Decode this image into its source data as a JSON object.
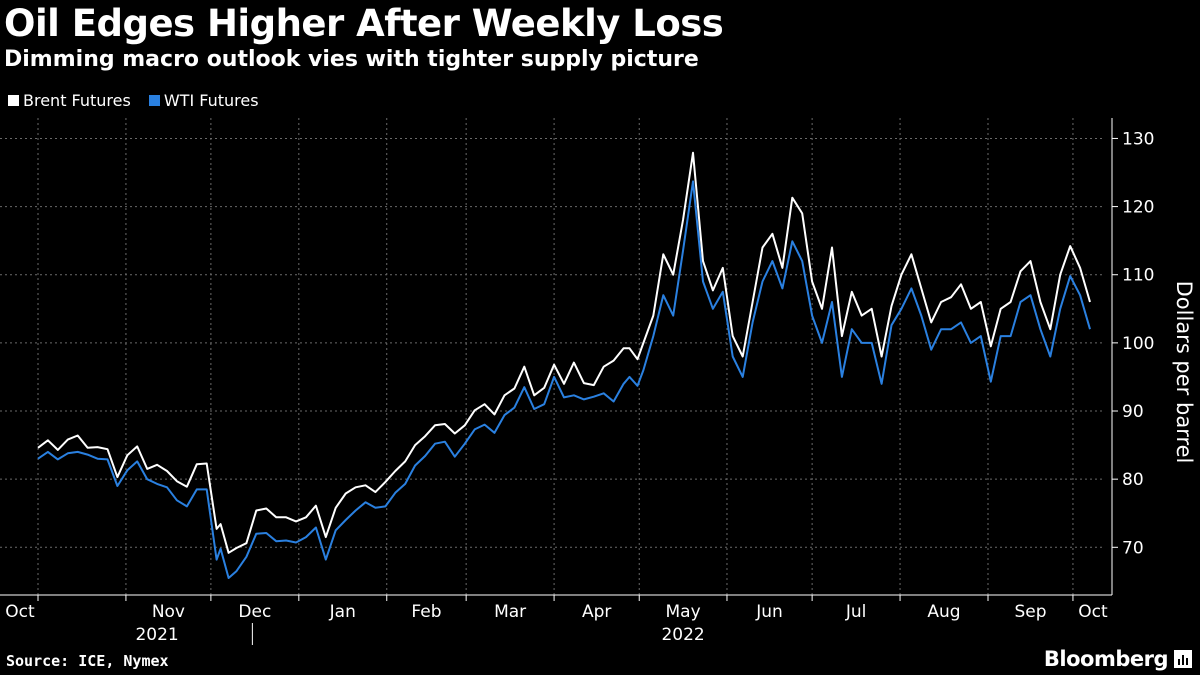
{
  "header": {
    "title": "Oil Edges Higher After Weekly Loss",
    "subtitle": "Dimming macro outlook vies with tighter supply picture"
  },
  "footer": {
    "source": "Source: ICE, Nymex",
    "brand": "Bloomberg"
  },
  "colors": {
    "background": "#000000",
    "brent": "#ffffff",
    "wti": "#2a80e0",
    "grid": "#6a6a6a"
  },
  "chart_data": {
    "type": "line",
    "title": "Oil Edges Higher After Weekly Loss",
    "subtitle": "Dimming macro outlook vies with tighter supply picture",
    "xlabel": "",
    "ylabel": "Dollars per barrel",
    "ylim": [
      63,
      133
    ],
    "yticks": [
      70,
      80,
      90,
      100,
      110,
      120,
      130
    ],
    "grid": true,
    "legend_position": "top-left",
    "x_unit": "weeks since 2021-10-01",
    "xlim": [
      0,
      53.1
    ],
    "month_ticks": [
      {
        "label": "Oct",
        "x": 0
      },
      {
        "label": "Nov",
        "x": 4.43
      },
      {
        "label": "Dec",
        "x": 8.71
      },
      {
        "label": "Jan",
        "x": 13.14
      },
      {
        "label": "Feb",
        "x": 17.57
      },
      {
        "label": "Mar",
        "x": 21.57
      },
      {
        "label": "Apr",
        "x": 26.0
      },
      {
        "label": "May",
        "x": 30.29
      },
      {
        "label": "Jun",
        "x": 34.71
      },
      {
        "label": "Jul",
        "x": 39.0
      },
      {
        "label": "Aug",
        "x": 43.43
      },
      {
        "label": "Sep",
        "x": 47.86
      },
      {
        "label": "Oct",
        "x": 52.14
      }
    ],
    "years": [
      {
        "label": "2021",
        "x": 6.0
      },
      {
        "label": "2022",
        "x": 32.5
      }
    ],
    "year_divider_x": 10.8,
    "series": [
      {
        "name": "Brent Futures",
        "color": "#ffffff",
        "points": [
          [
            0,
            84.6
          ],
          [
            0.5,
            85.7
          ],
          [
            1,
            84.3
          ],
          [
            1.5,
            85.8
          ],
          [
            2,
            86.4
          ],
          [
            2.5,
            84.6
          ],
          [
            3,
            84.7
          ],
          [
            3.5,
            84.4
          ],
          [
            4,
            80.3
          ],
          [
            4.5,
            83.5
          ],
          [
            5,
            84.8
          ],
          [
            5.5,
            81.5
          ],
          [
            6,
            82.1
          ],
          [
            6.5,
            81.2
          ],
          [
            7,
            79.7
          ],
          [
            7.5,
            78.9
          ],
          [
            8,
            82.2
          ],
          [
            8.5,
            82.3
          ],
          [
            9,
            72.7
          ],
          [
            9.2,
            73.4
          ],
          [
            9.6,
            69.2
          ],
          [
            10,
            69.9
          ],
          [
            10.5,
            70.6
          ],
          [
            11,
            75.4
          ],
          [
            11.5,
            75.7
          ],
          [
            12,
            74.4
          ],
          [
            12.5,
            74.4
          ],
          [
            13,
            73.8
          ],
          [
            13.5,
            74.4
          ],
          [
            14,
            76.1
          ],
          [
            14.5,
            71.5
          ],
          [
            15,
            75.8
          ],
          [
            15.5,
            77.9
          ],
          [
            16,
            78.8
          ],
          [
            16.5,
            79.1
          ],
          [
            17,
            78.1
          ],
          [
            17.5,
            79.6
          ],
          [
            18,
            81.2
          ],
          [
            18.5,
            82.6
          ],
          [
            19,
            85.0
          ],
          [
            19.5,
            86.3
          ],
          [
            20,
            87.9
          ],
          [
            20.5,
            88.1
          ],
          [
            21,
            86.7
          ],
          [
            21.5,
            87.9
          ],
          [
            22,
            90.1
          ],
          [
            22.5,
            91.0
          ],
          [
            23,
            89.5
          ],
          [
            23.5,
            92.3
          ],
          [
            24,
            93.3
          ],
          [
            24.5,
            96.5
          ],
          [
            25,
            92.3
          ],
          [
            25.5,
            93.4
          ],
          [
            26,
            96.8
          ],
          [
            26.5,
            94.0
          ],
          [
            27,
            97.1
          ],
          [
            27.5,
            94.1
          ],
          [
            28,
            93.8
          ],
          [
            28.5,
            96.5
          ],
          [
            29,
            97.4
          ],
          [
            29.5,
            99.2
          ],
          [
            29.8,
            99.2
          ],
          [
            30.2,
            97.6
          ],
          [
            30.5,
            100.0
          ],
          [
            31,
            104.0
          ],
          [
            31.5,
            113.0
          ],
          [
            32,
            110.0
          ],
          [
            32.5,
            118.1
          ],
          [
            33,
            127.9
          ],
          [
            33.5,
            112.0
          ],
          [
            34,
            107.7
          ],
          [
            34.5,
            111.0
          ],
          [
            35,
            101.0
          ],
          [
            35.5,
            98.0
          ],
          [
            36,
            106.0
          ],
          [
            36.5,
            114.0
          ],
          [
            37,
            116.0
          ],
          [
            37.5,
            111.0
          ],
          [
            38,
            121.3
          ],
          [
            38.5,
            119.0
          ],
          [
            39,
            109.0
          ],
          [
            39.5,
            105.0
          ],
          [
            40,
            114.0
          ],
          [
            40.5,
            101.0
          ],
          [
            41,
            107.5
          ],
          [
            41.5,
            104.0
          ],
          [
            42,
            105.0
          ],
          [
            42.5,
            98.0
          ],
          [
            43,
            105.4
          ],
          [
            43.5,
            110.0
          ],
          [
            44,
            113.0
          ],
          [
            44.5,
            108.0
          ],
          [
            45,
            103.0
          ],
          [
            45.5,
            106.0
          ],
          [
            46,
            106.7
          ],
          [
            46.5,
            108.6
          ],
          [
            47,
            105.0
          ],
          [
            47.5,
            106.0
          ],
          [
            48,
            99.5
          ],
          [
            48.5,
            105.0
          ],
          [
            49,
            106.0
          ],
          [
            49.5,
            110.5
          ],
          [
            50,
            112.0
          ],
          [
            50.5,
            106.0
          ],
          [
            51,
            102.0
          ],
          [
            51.5,
            110.0
          ],
          [
            52,
            114.2
          ],
          [
            52.5,
            111.0
          ],
          [
            53,
            106.0
          ]
        ]
      },
      {
        "name": "WTI Futures",
        "color": "#2a80e0",
        "points": [
          [
            0,
            83.0
          ],
          [
            0.5,
            84.0
          ],
          [
            1,
            82.9
          ],
          [
            1.5,
            83.8
          ],
          [
            2,
            84.0
          ],
          [
            2.5,
            83.6
          ],
          [
            3,
            83.0
          ],
          [
            3.5,
            82.9
          ],
          [
            4,
            79.0
          ],
          [
            4.5,
            81.3
          ],
          [
            5,
            82.6
          ],
          [
            5.5,
            80.0
          ],
          [
            6,
            79.3
          ],
          [
            6.5,
            78.8
          ],
          [
            7,
            76.9
          ],
          [
            7.5,
            76.0
          ],
          [
            8,
            78.5
          ],
          [
            8.5,
            78.5
          ],
          [
            9,
            68.2
          ],
          [
            9.2,
            69.8
          ],
          [
            9.6,
            65.5
          ],
          [
            10,
            66.5
          ],
          [
            10.5,
            68.6
          ],
          [
            11,
            72.0
          ],
          [
            11.5,
            72.1
          ],
          [
            12,
            70.9
          ],
          [
            12.5,
            71.0
          ],
          [
            13,
            70.7
          ],
          [
            13.5,
            71.5
          ],
          [
            14,
            72.9
          ],
          [
            14.5,
            68.2
          ],
          [
            15,
            72.5
          ],
          [
            15.5,
            74.0
          ],
          [
            16,
            75.4
          ],
          [
            16.5,
            76.6
          ],
          [
            17,
            75.8
          ],
          [
            17.5,
            76.0
          ],
          [
            18,
            78.0
          ],
          [
            18.5,
            79.3
          ],
          [
            19,
            82.0
          ],
          [
            19.5,
            83.4
          ],
          [
            20,
            85.2
          ],
          [
            20.5,
            85.5
          ],
          [
            21,
            83.3
          ],
          [
            21.5,
            85.2
          ],
          [
            22,
            87.3
          ],
          [
            22.5,
            88.0
          ],
          [
            23,
            86.8
          ],
          [
            23.5,
            89.4
          ],
          [
            24,
            90.5
          ],
          [
            24.5,
            93.5
          ],
          [
            25,
            90.3
          ],
          [
            25.5,
            91.0
          ],
          [
            26,
            95.0
          ],
          [
            26.5,
            92.0
          ],
          [
            27,
            92.3
          ],
          [
            27.5,
            91.7
          ],
          [
            28,
            92.1
          ],
          [
            28.5,
            92.6
          ],
          [
            29,
            91.4
          ],
          [
            29.5,
            94.0
          ],
          [
            29.8,
            95.0
          ],
          [
            30.2,
            93.7
          ],
          [
            30.5,
            96.0
          ],
          [
            31,
            101.0
          ],
          [
            31.5,
            107.0
          ],
          [
            32,
            104.0
          ],
          [
            32.5,
            113.6
          ],
          [
            33,
            123.7
          ],
          [
            33.5,
            109.0
          ],
          [
            34,
            105.0
          ],
          [
            34.5,
            107.5
          ],
          [
            35,
            98.0
          ],
          [
            35.5,
            95.0
          ],
          [
            36,
            103.0
          ],
          [
            36.5,
            109.0
          ],
          [
            37,
            112.0
          ],
          [
            37.5,
            108.0
          ],
          [
            38,
            114.9
          ],
          [
            38.5,
            112.0
          ],
          [
            39,
            104.0
          ],
          [
            39.5,
            100.0
          ],
          [
            40,
            106.0
          ],
          [
            40.5,
            95.0
          ],
          [
            41,
            102.0
          ],
          [
            41.5,
            100.0
          ],
          [
            42,
            100.0
          ],
          [
            42.5,
            94.0
          ],
          [
            43,
            102.6
          ],
          [
            43.5,
            105.0
          ],
          [
            44,
            108.0
          ],
          [
            44.5,
            104.0
          ],
          [
            45,
            99.0
          ],
          [
            45.5,
            102.0
          ],
          [
            46,
            102.0
          ],
          [
            46.5,
            103.0
          ],
          [
            47,
            100.0
          ],
          [
            47.5,
            101.0
          ],
          [
            48,
            94.3
          ],
          [
            48.5,
            101.0
          ],
          [
            49,
            101.0
          ],
          [
            49.5,
            106.0
          ],
          [
            50,
            107.0
          ],
          [
            50.5,
            102.0
          ],
          [
            51,
            98.0
          ],
          [
            51.5,
            105.0
          ],
          [
            52,
            109.8
          ],
          [
            52.5,
            107.0
          ],
          [
            53,
            102.0
          ]
        ]
      }
    ]
  }
}
